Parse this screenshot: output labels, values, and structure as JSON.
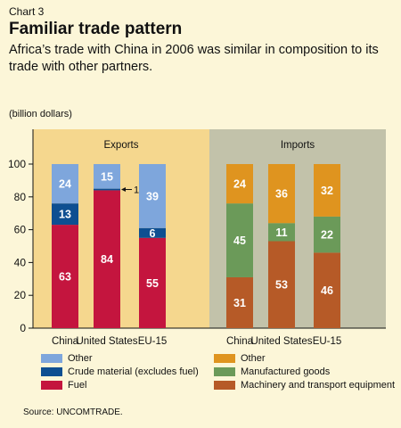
{
  "chart_label": "Chart 3",
  "title": "Familiar trade pattern",
  "subtitle": "Africa’s trade with China in 2006 was similar in composition to its trade with other partners.",
  "units": "(billion dollars)",
  "source": "Source: UNCOMTRADE.",
  "colors": {
    "exports_panel": "#f5d78e",
    "imports_panel": "#c2c2aa",
    "other_exports": "#7ea6dc",
    "crude": "#0e4f91",
    "fuel": "#c4153e",
    "other_imports": "#df941f",
    "manufactured": "#6b9a59",
    "machinery": "#b65a27"
  },
  "chart_data": {
    "type": "bar",
    "stacked": true,
    "ylim": [
      0,
      100
    ],
    "yticks": [
      0,
      20,
      40,
      60,
      80,
      100
    ],
    "groups": [
      {
        "name": "Exports",
        "categories": [
          "China",
          "United States",
          "EU-15"
        ],
        "series": [
          {
            "name": "Fuel",
            "color_key": "fuel",
            "values": [
              63,
              84,
              55
            ],
            "labels": [
              "63",
              "84",
              "55"
            ]
          },
          {
            "name": "Crude material (excludes fuel)",
            "color_key": "crude",
            "values": [
              13,
              1,
              6
            ],
            "labels": [
              "13",
              "",
              "6"
            ]
          },
          {
            "name": "Other",
            "color_key": "other_exports",
            "values": [
              24,
              15,
              39
            ],
            "labels": [
              "24",
              "15",
              "39"
            ]
          }
        ]
      },
      {
        "name": "Imports",
        "categories": [
          "China",
          "United States",
          "EU-15"
        ],
        "series": [
          {
            "name": "Machinery and transport equipment",
            "color_key": "machinery",
            "values": [
              31,
              53,
              46
            ],
            "labels": [
              "31",
              "53",
              "46"
            ]
          },
          {
            "name": "Manufactured goods",
            "color_key": "manufactured",
            "values": [
              45,
              11,
              22
            ],
            "labels": [
              "45",
              "11",
              "22"
            ]
          },
          {
            "name": "Other",
            "color_key": "other_imports",
            "values": [
              24,
              36,
              32
            ],
            "labels": [
              "24",
              "36",
              "32"
            ]
          }
        ]
      }
    ],
    "annotations": [
      {
        "group": 0,
        "category": 1,
        "series": 1,
        "text": "1"
      }
    ]
  },
  "legend": {
    "exports": [
      {
        "label": "Other",
        "color_key": "other_exports"
      },
      {
        "label": "Crude material (excludes fuel)",
        "color_key": "crude"
      },
      {
        "label": "Fuel",
        "color_key": "fuel"
      }
    ],
    "imports": [
      {
        "label": "Other",
        "color_key": "other_imports"
      },
      {
        "label": "Manufactured goods",
        "color_key": "manufactured"
      },
      {
        "label": "Machinery and transport equipment",
        "color_key": "machinery"
      }
    ]
  }
}
